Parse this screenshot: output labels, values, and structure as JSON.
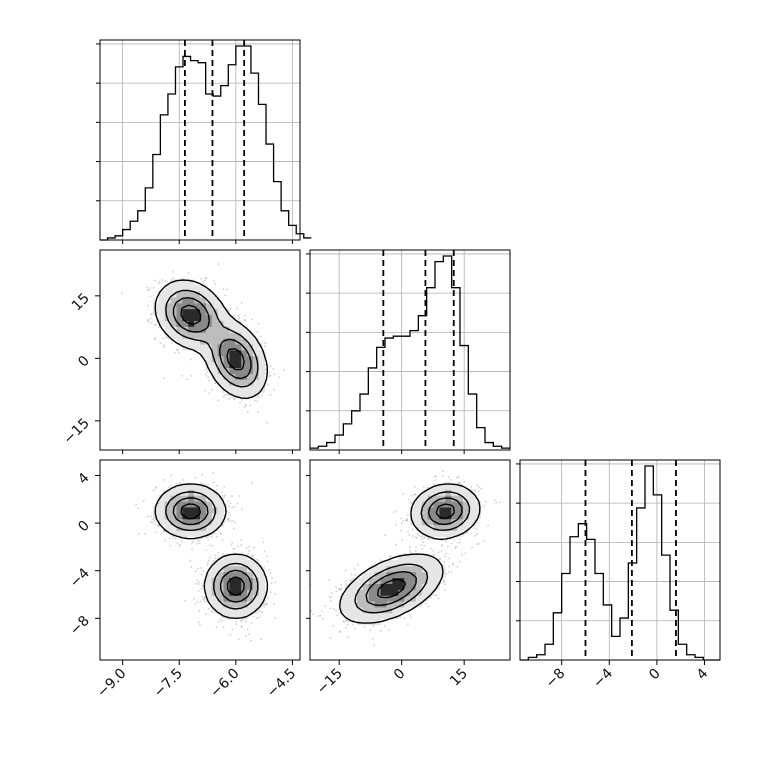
{
  "chart_data": {
    "type": "corner",
    "colors": {
      "line": "#000000",
      "grid": "#b0b0b0",
      "points": "#7a7a7a"
    },
    "grid": true,
    "parameters": [
      {
        "range": [
          -9.6,
          -4.3
        ],
        "ticks": [
          -9.0,
          -7.5,
          -6.0,
          -4.5
        ],
        "tick_labels": [
          "−9.0",
          "−7.5",
          "−6.0",
          "−4.5"
        ]
      },
      {
        "range": [
          -22,
          26
        ],
        "ticks": [
          -15,
          0,
          15
        ],
        "tick_labels": [
          "−15",
          "0",
          "15"
        ]
      },
      {
        "range": [
          -11.5,
          5.3
        ],
        "ticks": [
          -8,
          -4,
          0,
          4
        ],
        "tick_labels": [
          "−8",
          "−4",
          "0",
          "4"
        ]
      }
    ],
    "histograms": [
      {
        "quantiles": [
          -7.35,
          -6.62,
          -5.78
        ],
        "bins": {
          "start": -9.6,
          "width": 0.2,
          "counts": [
            0,
            1,
            2,
            5,
            9,
            14,
            25,
            41,
            60,
            70,
            83,
            88,
            86,
            85,
            70,
            69,
            74,
            84,
            93,
            93,
            80,
            65,
            46,
            28,
            14,
            7,
            3,
            1
          ]
        }
      },
      {
        "quantiles": [
          -4.4,
          5.7,
          12.5
        ],
        "bins": {
          "start": -22,
          "width": 2,
          "counts": [
            1,
            2,
            4,
            8,
            14,
            21,
            30,
            44,
            55,
            60,
            61,
            61,
            64,
            72,
            87,
            101,
            104,
            87,
            56,
            30,
            12,
            4,
            2,
            1
          ]
        }
      },
      {
        "quantiles": [
          -6.0,
          -2.1,
          1.6
        ],
        "bins": {
          "start": -11.5,
          "width": 0.7,
          "counts": [
            0,
            1,
            2,
            6,
            18,
            33,
            47,
            52,
            46,
            33,
            21,
            9,
            16,
            37,
            58,
            74,
            63,
            40,
            19,
            6,
            2,
            1,
            0,
            0
          ]
        }
      }
    ],
    "pairs": [
      {
        "x_param": 0,
        "y_param": 1,
        "modes": [
          {
            "x": -7.2,
            "y": 10.5,
            "sx": 0.45,
            "sy": 4.0,
            "rho": -0.2,
            "w": 1.0
          },
          {
            "x": -6.0,
            "y": -0.3,
            "sx": 0.4,
            "sy": 4.5,
            "rho": -0.3,
            "w": 1.0
          }
        ]
      },
      {
        "x_param": 0,
        "y_param": 2,
        "modes": [
          {
            "x": -7.2,
            "y": 1.0,
            "sx": 0.45,
            "sy": 1.1,
            "rho": 0.0,
            "w": 1.0
          },
          {
            "x": -6.0,
            "y": -5.3,
            "sx": 0.4,
            "sy": 1.3,
            "rho": 0.0,
            "w": 1.0
          }
        ]
      },
      {
        "x_param": 1,
        "y_param": 2,
        "modes": [
          {
            "x": 10.5,
            "y": 1.0,
            "sx": 4.0,
            "sy": 1.1,
            "rho": 0.1,
            "w": 1.0
          },
          {
            "x": -2.5,
            "y": -5.5,
            "sx": 6.0,
            "sy": 1.4,
            "rho": 0.5,
            "w": 1.0
          }
        ]
      }
    ],
    "xlabel": "",
    "ylabel": "",
    "title": ""
  }
}
